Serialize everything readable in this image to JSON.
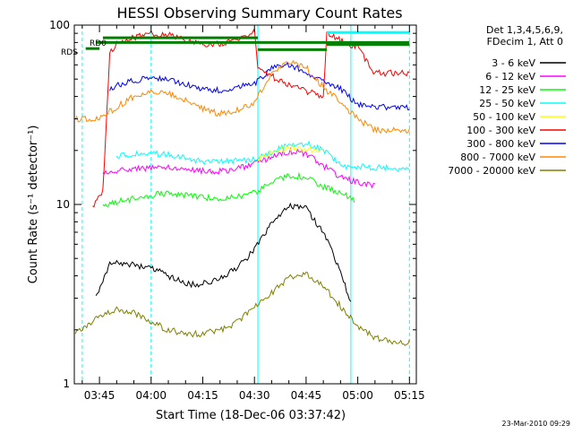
{
  "chart_data": {
    "type": "line",
    "title": "HESSI Observing Summary Count Rates",
    "xlabel": "Start Time (18-Dec-06 03:37:42)",
    "ylabel": "Count Rate (s⁻¹ detector⁻¹)",
    "y_scale": "log",
    "ylim": [
      1,
      100
    ],
    "xlim": [
      "03:37:42",
      "05:17:00"
    ],
    "x_ticks": [
      "03:45",
      "04:00",
      "04:15",
      "04:30",
      "04:45",
      "05:00",
      "05:15"
    ],
    "y_ticks": [
      "1",
      "10",
      "100"
    ],
    "footer": "23-Mar-2010 09:29",
    "legend_title": [
      "Det 1,3,4,5,6,9,",
      "FDecim 1, Att 0"
    ],
    "legend_position": "right",
    "grid": false,
    "flag_labels": [
      "RD0",
      "RDS"
    ],
    "series": [
      {
        "name": "3 - 6 keV",
        "color": "#000000",
        "x": [
          "03:44",
          "03:46",
          "03:48",
          "03:50",
          "03:55",
          "04:00",
          "04:05",
          "04:10",
          "04:15",
          "04:20",
          "04:25",
          "04:30",
          "04:35",
          "04:40",
          "04:45",
          "04:50",
          "04:55",
          "04:58"
        ],
        "y": [
          3.1,
          3.8,
          4.6,
          4.8,
          4.6,
          4.4,
          4.0,
          3.6,
          3.6,
          3.9,
          4.4,
          5.6,
          7.8,
          9.8,
          9.5,
          7.0,
          4.2,
          2.8
        ]
      },
      {
        "name": "6 - 12 keV",
        "color": "#ff00ff",
        "x": [
          "03:46",
          "03:50",
          "03:55",
          "04:00",
          "04:05",
          "04:10",
          "04:15",
          "04:20",
          "04:25",
          "04:30",
          "04:35",
          "04:40",
          "04:45",
          "04:50",
          "04:55",
          "05:00",
          "05:05"
        ],
        "y": [
          15.0,
          15.5,
          15.8,
          16.0,
          16.2,
          16.0,
          15.3,
          15.3,
          15.8,
          16.8,
          18.5,
          19.8,
          19.2,
          16.5,
          14.2,
          13.2,
          12.7
        ]
      },
      {
        "name": "12 - 25 keV",
        "color": "#00ff00",
        "x": [
          "03:46",
          "03:50",
          "03:55",
          "04:00",
          "04:05",
          "04:10",
          "04:15",
          "04:20",
          "04:25",
          "04:30",
          "04:35",
          "04:40",
          "04:45",
          "04:50",
          "04:55",
          "04:59"
        ],
        "y": [
          10.0,
          10.3,
          10.8,
          11.3,
          11.5,
          11.3,
          10.9,
          10.8,
          11.0,
          11.6,
          13.2,
          14.5,
          14.2,
          12.5,
          11.5,
          10.6
        ]
      },
      {
        "name": "25 - 50 keV",
        "color": "#00ffff",
        "x": [
          "03:50",
          "03:55",
          "04:00",
          "04:05",
          "04:10",
          "04:15",
          "04:20",
          "04:25",
          "04:30",
          "04:35",
          "04:40",
          "04:45",
          "04:50",
          "04:55",
          "05:00",
          "05:05",
          "05:10",
          "05:15"
        ],
        "y": [
          18.6,
          19.0,
          19.3,
          19.0,
          18.2,
          17.4,
          17.2,
          17.5,
          17.8,
          19.6,
          21.5,
          21.8,
          20.2,
          16.4,
          16.2,
          16.0,
          15.9,
          15.8
        ]
      },
      {
        "name": "50 - 100 keV",
        "color": "#ffff00",
        "x": [
          "04:31",
          "04:35",
          "04:40",
          "04:45",
          "04:50"
        ],
        "y": [
          17.8,
          19.8,
          20.8,
          20.4,
          19.5
        ]
      },
      {
        "name": "100 - 300 keV",
        "color": "#ff0000",
        "x": [
          "03:43",
          "03:46",
          "03:48",
          "03:50",
          "03:55",
          "04:00",
          "04:05",
          "04:10",
          "04:15",
          "04:20",
          "04:25",
          "04:30",
          "04:31",
          "04:35",
          "04:40",
          "04:45",
          "04:50",
          "04:51",
          "04:55",
          "05:00",
          "05:05",
          "05:15"
        ],
        "y": [
          9.8,
          12.0,
          71.0,
          78.0,
          85.0,
          90.0,
          88.0,
          82.0,
          78.0,
          79.0,
          83.0,
          92.0,
          57.0,
          52.0,
          46.0,
          43.0,
          40.0,
          90.0,
          82.0,
          75.0,
          54.0,
          54.0
        ]
      },
      {
        "name": "300 - 800 keV",
        "color": "#0000ff",
        "x": [
          "03:48",
          "03:50",
          "03:55",
          "04:00",
          "04:05",
          "04:10",
          "04:15",
          "04:20",
          "04:25",
          "04:30",
          "04:35",
          "04:40",
          "04:45",
          "04:50",
          "04:55",
          "05:00",
          "05:05",
          "05:10",
          "05:15"
        ],
        "y": [
          43.0,
          46.0,
          49.0,
          51.0,
          50.0,
          47.0,
          44.0,
          43.5,
          45.0,
          47.0,
          57.0,
          60.0,
          55.0,
          48.0,
          44.0,
          36.0,
          35.0,
          35.0,
          35.0
        ]
      },
      {
        "name": "800 - 7000 keV",
        "color": "#ff8800",
        "x": [
          "03:38",
          "03:45",
          "03:50",
          "03:55",
          "04:00",
          "04:05",
          "04:10",
          "04:15",
          "04:20",
          "04:25",
          "04:30",
          "04:35",
          "04:40",
          "04:45",
          "04:50",
          "04:55",
          "05:00",
          "05:05",
          "05:10",
          "05:15"
        ],
        "y": [
          30.0,
          30.0,
          35.0,
          40.0,
          43.0,
          42.0,
          38.0,
          34.0,
          32.0,
          33.5,
          37.0,
          54.0,
          62.0,
          58.0,
          45.0,
          37.0,
          30.0,
          26.0,
          26.0,
          26.0
        ]
      },
      {
        "name": "7000 - 20000 keV",
        "color": "#808000",
        "x": [
          "03:38",
          "03:45",
          "03:50",
          "03:55",
          "04:00",
          "04:05",
          "04:10",
          "04:15",
          "04:20",
          "04:25",
          "04:30",
          "04:35",
          "04:40",
          "04:45",
          "04:50",
          "04:55",
          "05:00",
          "05:05",
          "05:10",
          "05:15"
        ],
        "y": [
          1.9,
          2.4,
          2.6,
          2.5,
          2.2,
          2.0,
          1.9,
          1.9,
          2.0,
          2.2,
          2.7,
          3.2,
          3.9,
          4.1,
          3.5,
          2.7,
          2.1,
          1.8,
          1.7,
          1.7
        ]
      }
    ],
    "flags": [
      {
        "label": "RD0",
        "color": "#008000",
        "x": [
          "03:44",
          "05:15"
        ],
        "y": 80
      },
      {
        "label": "RDS",
        "color": "#008000",
        "x": [
          "03:41",
          "03:45"
        ],
        "y": 74
      },
      {
        "label": "",
        "color": "#008000",
        "x": [
          "03:46",
          "04:31"
        ],
        "y": 85
      },
      {
        "label": "",
        "color": "#008000",
        "x": [
          "04:31",
          "04:51"
        ],
        "y": 73
      },
      {
        "label": "",
        "color": "#008000",
        "x": [
          "04:51",
          "05:15"
        ],
        "y": 78
      },
      {
        "label": "",
        "color": "#00ffff",
        "x": [
          "04:51",
          "05:15"
        ],
        "y": 91
      }
    ],
    "vlines": [
      {
        "color": "#00ffff",
        "style": "dashed",
        "x": "04:00"
      },
      {
        "color": "#00ffff",
        "style": "dashed",
        "x": "05:15"
      },
      {
        "color": "#00ffff",
        "style": "solid",
        "x": "04:31"
      },
      {
        "color": "#00ffff",
        "style": "solid",
        "x": "04:58"
      },
      {
        "color": "#00ffff",
        "style": "dashed",
        "x": "03:40"
      }
    ]
  }
}
